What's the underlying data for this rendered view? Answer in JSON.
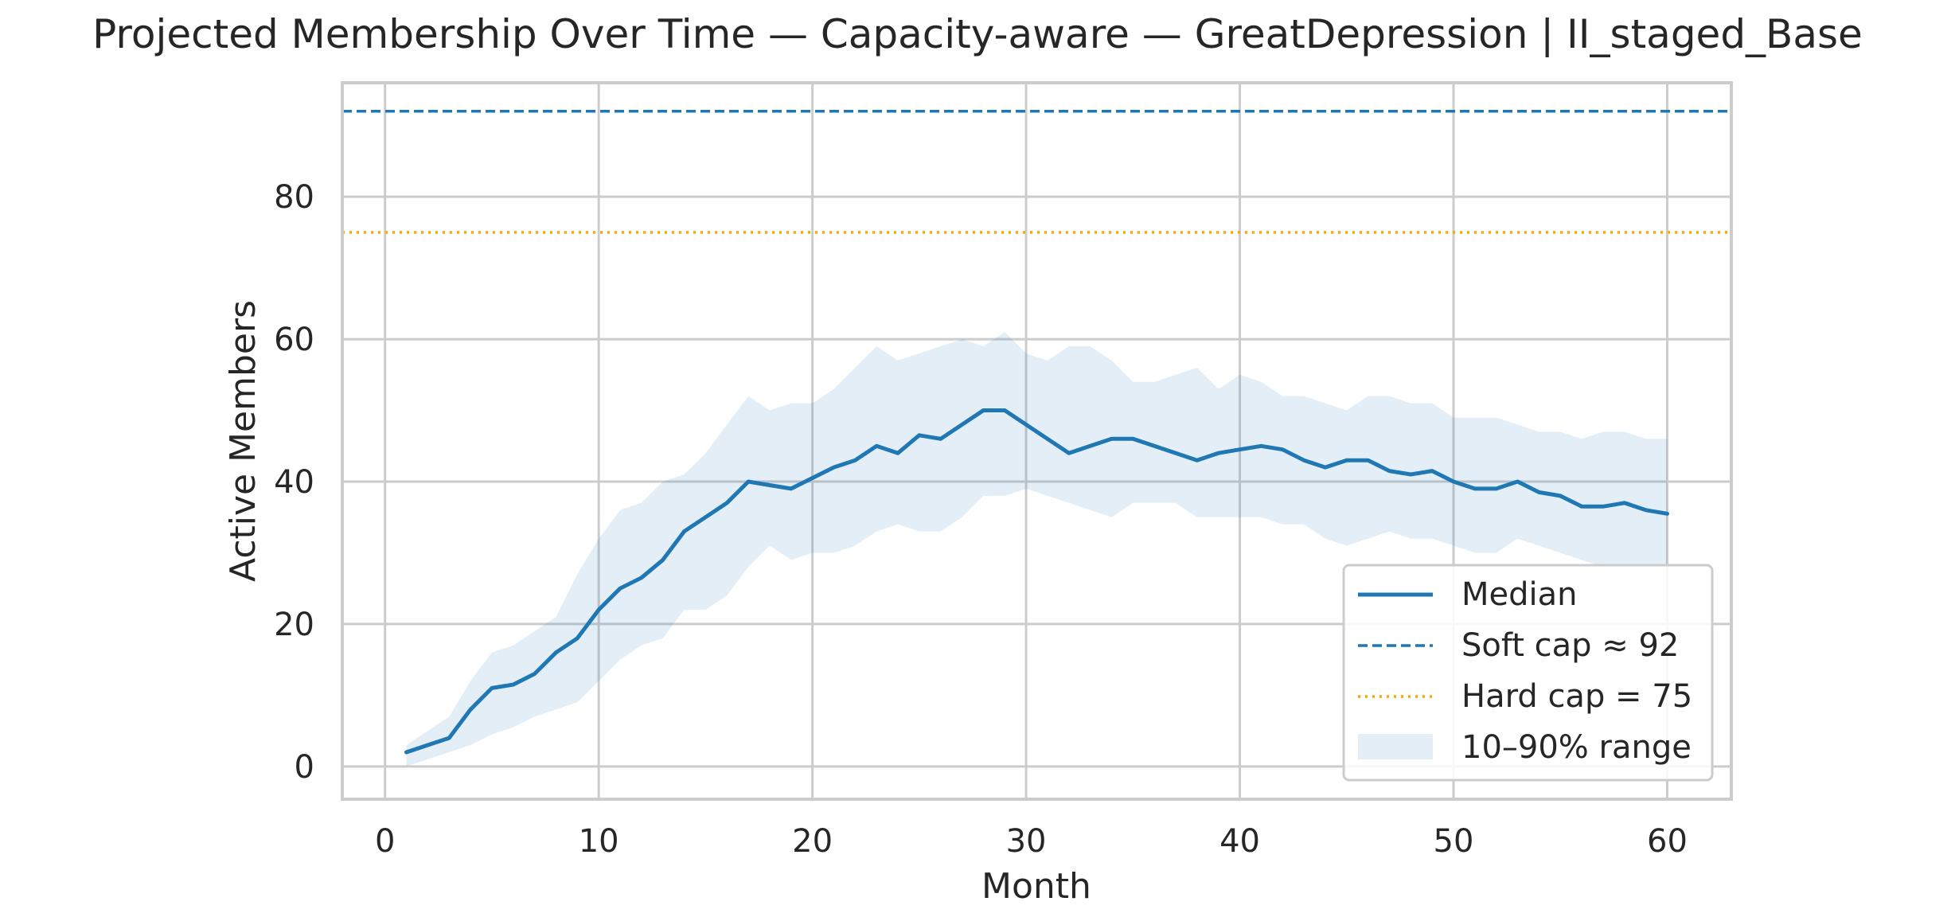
{
  "chart_data": {
    "type": "line",
    "title": "Projected Membership Over Time — Capacity-aware — GreatDepression | II_staged_Base",
    "xlabel": "Month",
    "ylabel": "Active Members",
    "xlim": [
      -2,
      63
    ],
    "ylim": [
      -4.6,
      96
    ],
    "xticks": [
      0,
      10,
      20,
      30,
      40,
      50,
      60
    ],
    "yticks": [
      0,
      20,
      40,
      60,
      80
    ],
    "grid": true,
    "legend_position": "lower-right",
    "x": [
      1,
      2,
      3,
      4,
      5,
      6,
      7,
      8,
      9,
      10,
      11,
      12,
      13,
      14,
      15,
      16,
      17,
      18,
      19,
      20,
      21,
      22,
      23,
      24,
      25,
      26,
      27,
      28,
      29,
      30,
      31,
      32,
      33,
      34,
      35,
      36,
      37,
      38,
      39,
      40,
      41,
      42,
      43,
      44,
      45,
      46,
      47,
      48,
      49,
      50,
      51,
      52,
      53,
      54,
      55,
      56,
      57,
      58,
      59,
      60
    ],
    "series": [
      {
        "name": "Median",
        "style": "solid",
        "color": "#1f77b4",
        "values": [
          2,
          3,
          4,
          8,
          11,
          11.5,
          13,
          16,
          18,
          22,
          25,
          26.5,
          29,
          33,
          35,
          37,
          40,
          39.5,
          39,
          40.5,
          42,
          43,
          45,
          44,
          46.5,
          46,
          48,
          50,
          50,
          48,
          46,
          44,
          45,
          46,
          46,
          45,
          44,
          43,
          44,
          44.5,
          45,
          44.5,
          43,
          42,
          43,
          43,
          41.5,
          41,
          41.5,
          40,
          39,
          39,
          40,
          38.5,
          38,
          36.5,
          36.5,
          37,
          36,
          35.5
        ]
      },
      {
        "name": "10–90% range",
        "type": "band",
        "color": "#1f77b4",
        "lower": [
          0,
          1,
          2,
          3,
          4.5,
          5.5,
          7,
          8,
          9,
          12,
          15,
          17,
          18,
          22,
          22,
          24,
          28,
          31,
          29,
          30,
          30,
          31,
          33,
          34,
          33,
          33,
          35,
          38,
          38,
          39,
          38,
          37,
          36,
          35,
          37,
          37,
          37,
          35,
          35,
          35,
          35,
          34,
          34,
          32,
          31,
          32,
          33,
          32,
          32,
          31,
          30,
          30,
          32,
          31,
          30,
          29,
          28,
          28,
          28,
          28
        ],
        "upper": [
          3,
          5,
          7,
          12,
          16,
          17,
          19,
          21,
          27,
          32,
          36,
          37,
          40,
          41,
          44,
          48,
          52,
          50,
          51,
          51,
          53,
          56,
          59,
          57,
          58,
          59,
          60,
          59,
          61,
          58,
          57,
          59,
          59,
          57,
          54,
          54,
          55,
          56,
          53,
          55,
          54,
          52,
          52,
          51,
          50,
          52,
          52,
          51,
          51,
          49,
          49,
          49,
          48,
          47,
          47,
          46,
          47,
          47,
          46,
          46
        ]
      }
    ],
    "reference_lines": [
      {
        "name": "Soft cap ≈ 92",
        "y": 92,
        "style": "dashed",
        "color": "#1f77b4"
      },
      {
        "name": "Hard cap = 75",
        "y": 75,
        "style": "dotted",
        "color": "#ffa500"
      }
    ],
    "legend": [
      "Median",
      "Soft cap ≈ 92",
      "Hard cap = 75",
      "10–90% range"
    ]
  }
}
